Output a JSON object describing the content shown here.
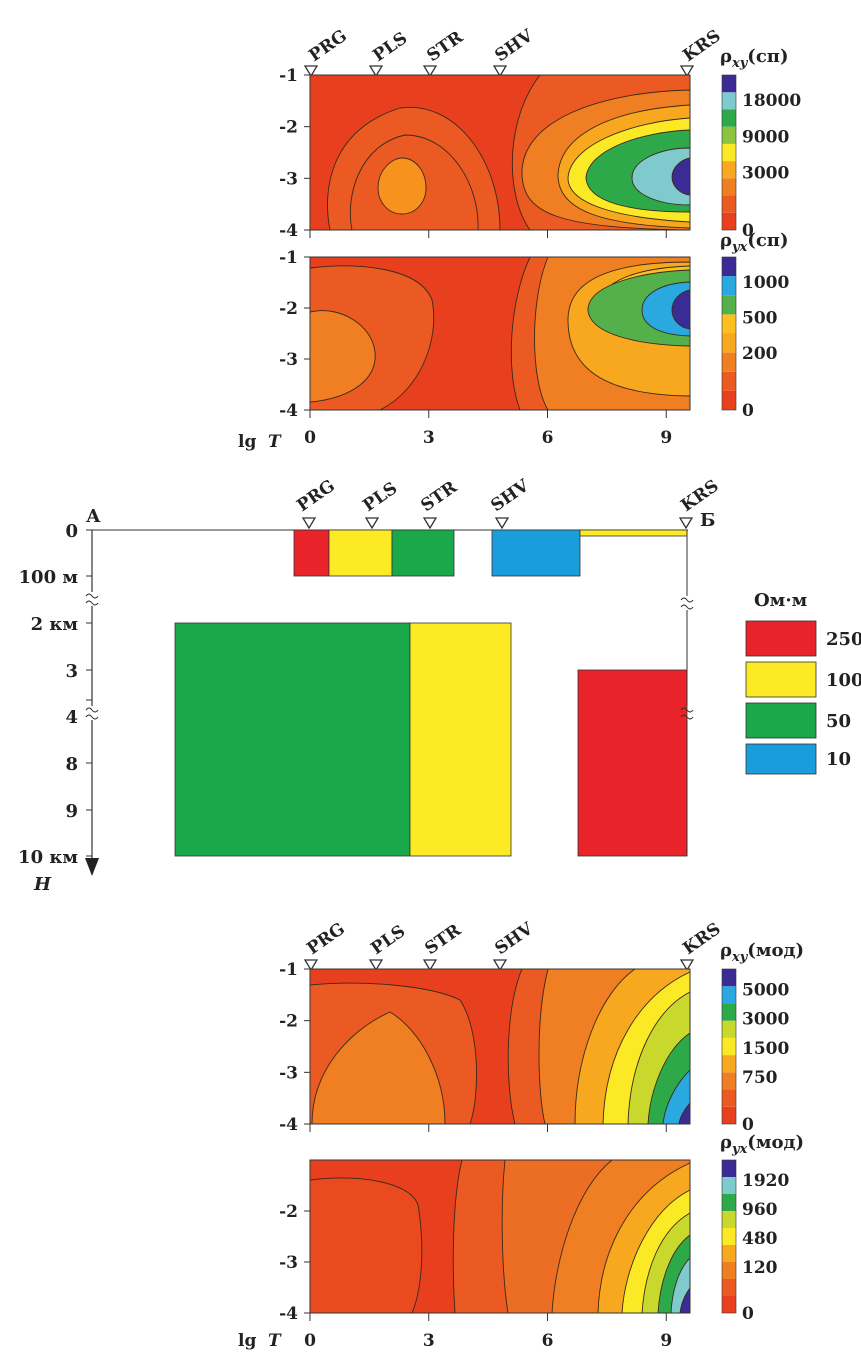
{
  "stations": [
    "PRG",
    "PLS",
    "STR",
    "SHV",
    "KRS"
  ],
  "x_axis": {
    "label_lg": "lg",
    "label_T": "T",
    "ticks": [
      "0",
      "3",
      "6",
      "9"
    ]
  },
  "section": {
    "left_label": "А",
    "right_label": "Б",
    "depth_axis_label": "H",
    "depth_ticks": [
      "0",
      "100 м",
      "2 км",
      "3",
      "4",
      "8",
      "9",
      "10 км"
    ],
    "legend_title": "Ом·м",
    "legend": [
      {
        "value": "250",
        "color": "#e8232a"
      },
      {
        "value": "100",
        "color": "#fbea24"
      },
      {
        "value": "50",
        "color": "#19a84a"
      },
      {
        "value": "10",
        "color": "#1a9ddb"
      }
    ],
    "blocks_upper": [
      {
        "from_station": 0.0,
        "to_station": 0.45,
        "color": "#e8232a",
        "resistivity": "250"
      },
      {
        "from_station": 0.45,
        "to_station": 1.25,
        "color": "#fbea24",
        "resistivity": "100"
      },
      {
        "from_station": 1.25,
        "to_station": 2.05,
        "color": "#19a84a",
        "resistivity": "50"
      },
      {
        "from_station": 2.5,
        "to_station": 3.6,
        "color": "#1a9ddb",
        "resistivity": "10"
      },
      {
        "from_station": 3.6,
        "to_station": 5.0,
        "color": "#fbea24",
        "resistivity": "100"
      }
    ],
    "blocks_deep": [
      {
        "x_from": "A",
        "x_to": "PRG-PLS",
        "depth_km": [
          2,
          10
        ],
        "color": "#19a84a",
        "resistivity": "50"
      },
      {
        "x_to": "SHV",
        "depth_km": [
          2,
          10
        ],
        "color": "#fbea24",
        "resistivity": "100"
      },
      {
        "x_from": "SHV-KRS",
        "x_to": "KRS",
        "depth_km": [
          3,
          10
        ],
        "color": "#e8232a",
        "resistivity": "250"
      }
    ]
  },
  "chart_data": [
    {
      "type": "heatmap",
      "title_rho": "ρ",
      "title_sub": "xy",
      "title_tail": "(сп)",
      "xlabel": "lg T",
      "xlim": [
        0,
        9.6
      ],
      "ylim": [
        -4,
        -1
      ],
      "yticks": [
        "-1",
        "-2",
        "-3",
        "-4"
      ],
      "colorbar_ticks": [
        "18000",
        "9000",
        "3000",
        "0"
      ],
      "colors": [
        "#e8401e",
        "#ea5a22",
        "#f07e22",
        "#f7a81f",
        "#fbe925",
        "#8bc43f",
        "#2ea94a",
        "#7fcacd",
        "#3b2c95"
      ]
    },
    {
      "type": "heatmap",
      "title_rho": "ρ",
      "title_sub": "yx",
      "title_tail": "(сп)",
      "xlabel": "lg T",
      "xlim": [
        0,
        9.6
      ],
      "ylim": [
        -4,
        -1
      ],
      "yticks": [
        "-1",
        "-2",
        "-3",
        "-4"
      ],
      "colorbar_ticks": [
        "1000",
        "500",
        "200",
        "0"
      ],
      "colors": [
        "#e8401e",
        "#ea5a22",
        "#f07e22",
        "#f7a81f",
        "#fbc020",
        "#53b04a",
        "#29a9e0",
        "#3b2c95"
      ]
    },
    {
      "type": "heatmap",
      "title_rho": "ρ",
      "title_sub": "xy",
      "title_tail": "(мод)",
      "xlabel": "lg T",
      "xlim": [
        0,
        9.6
      ],
      "ylim": [
        -4,
        -1
      ],
      "yticks": [
        "-1",
        "-2",
        "-3",
        "-4"
      ],
      "colorbar_ticks": [
        "5000",
        "3000",
        "1500",
        "750",
        "0"
      ],
      "colors": [
        "#e8401e",
        "#ea5a22",
        "#f07e22",
        "#f7a81f",
        "#fbe925",
        "#c9d82c",
        "#2ea94a",
        "#29a9e0",
        "#3b2c95"
      ]
    },
    {
      "type": "heatmap",
      "title_rho": "ρ",
      "title_sub": "yx",
      "title_tail": "(мод)",
      "xlabel": "lg T",
      "xlim": [
        0,
        9.6
      ],
      "ylim": [
        -4,
        -1
      ],
      "yticks": [
        "-2",
        "-3",
        "-4"
      ],
      "colorbar_ticks": [
        "1920",
        "960",
        "480",
        "120",
        "0"
      ],
      "colors": [
        "#e8401e",
        "#ea5a22",
        "#f07e22",
        "#f7a81f",
        "#fbe925",
        "#c9d82c",
        "#2ea94a",
        "#7fcacd",
        "#3b2c95"
      ]
    }
  ]
}
